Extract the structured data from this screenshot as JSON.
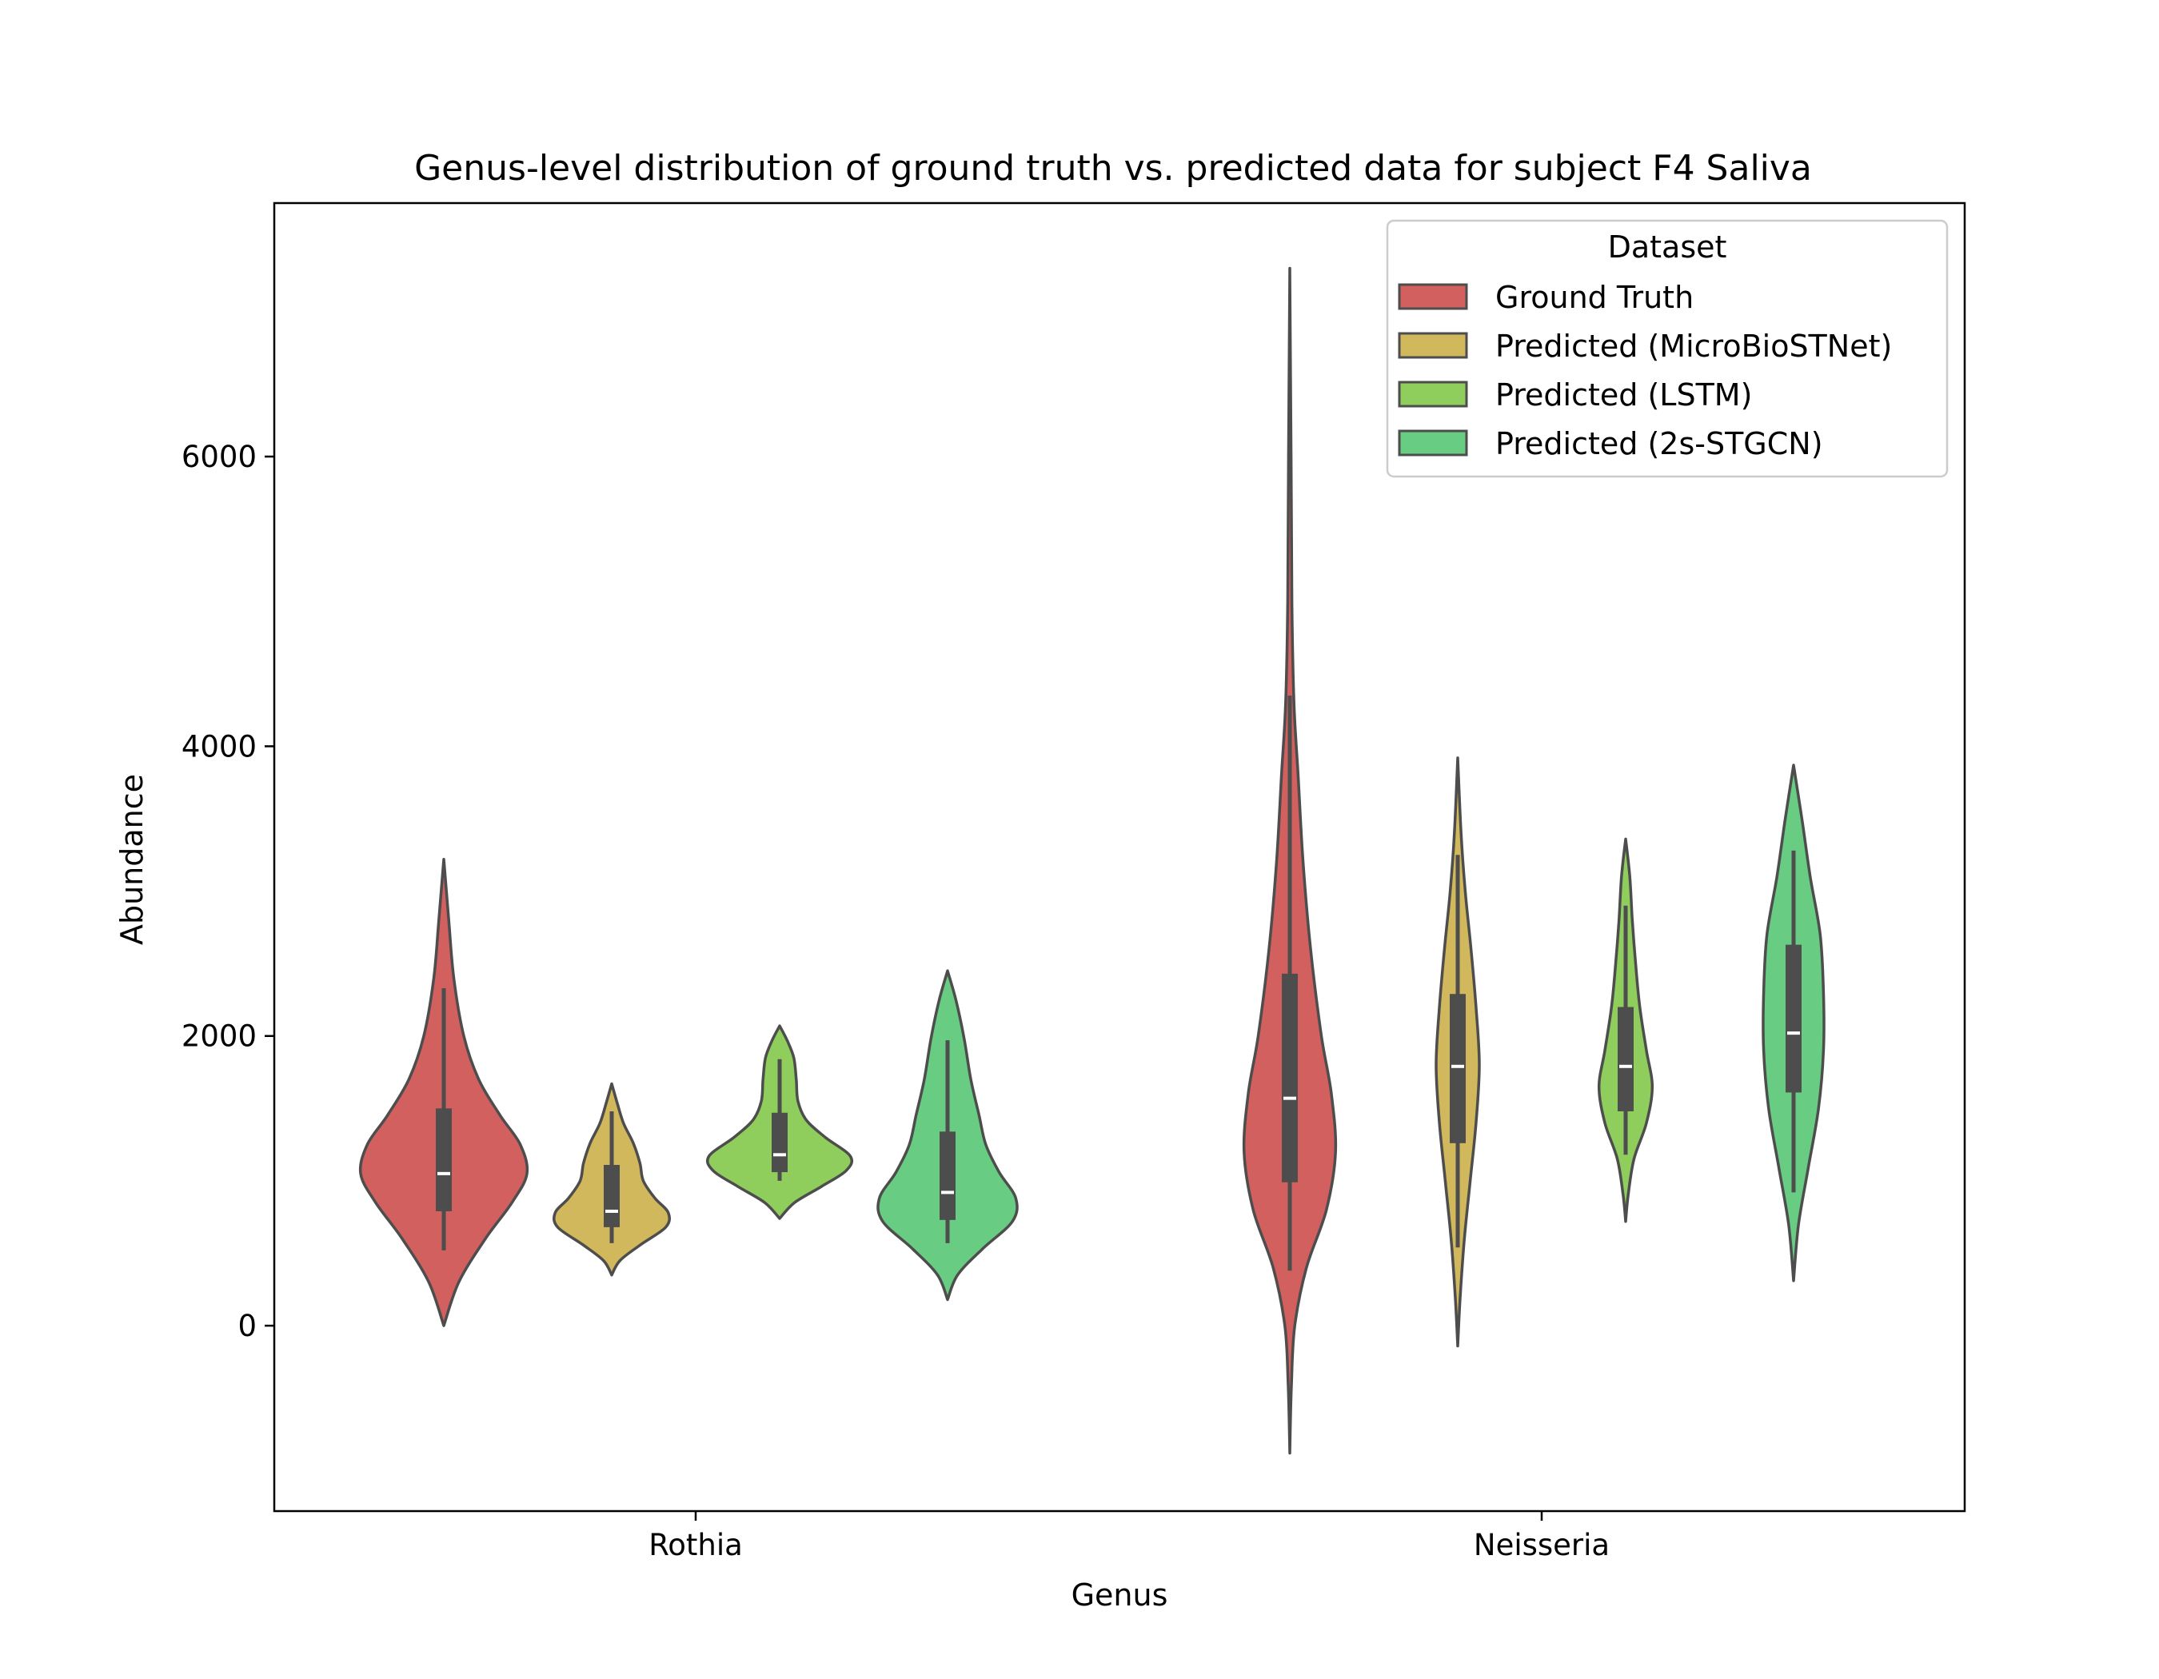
{
  "chart_data": {
    "type": "violin",
    "title": "Genus-level distribution of ground truth vs. predicted data for subject F4 Saliva",
    "xlabel": "Genus",
    "ylabel": "Abundance",
    "ylim": [
      -1280,
      7750
    ],
    "yticks": [
      0,
      2000,
      4000,
      6000
    ],
    "categories": [
      "Rothia",
      "Neisseria"
    ],
    "legend": {
      "title": "Dataset",
      "position": "top-right"
    },
    "series": [
      {
        "name": "Ground Truth",
        "color": "#d1605e",
        "stats": [
          {
            "min": 0,
            "max": 3220,
            "whisker_low": 520,
            "q1": 790,
            "median": 1050,
            "q3": 1500,
            "whisker_high": 2330,
            "density": [
              [
                0,
                0.0
              ],
              [
                300,
                0.18
              ],
              [
                600,
                0.5
              ],
              [
                850,
                0.82
              ],
              [
                1050,
                1.0
              ],
              [
                1250,
                0.92
              ],
              [
                1450,
                0.68
              ],
              [
                1700,
                0.42
              ],
              [
                2000,
                0.24
              ],
              [
                2400,
                0.12
              ],
              [
                2800,
                0.06
              ],
              [
                3220,
                0.0
              ]
            ]
          },
          {
            "min": -880,
            "max": 7300,
            "whisker_low": 380,
            "q1": 990,
            "median": 1570,
            "q3": 2430,
            "whisker_high": 4350,
            "density": [
              [
                -880,
                0.0
              ],
              [
                -400,
                0.02
              ],
              [
                0,
                0.06
              ],
              [
                400,
                0.2
              ],
              [
                800,
                0.44
              ],
              [
                1200,
                0.55
              ],
              [
                1600,
                0.5
              ],
              [
                2000,
                0.38
              ],
              [
                2600,
                0.25
              ],
              [
                3200,
                0.16
              ],
              [
                3800,
                0.1
              ],
              [
                4300,
                0.05
              ],
              [
                5000,
                0.025
              ],
              [
                6000,
                0.015
              ],
              [
                7300,
                0.0
              ]
            ]
          }
        ]
      },
      {
        "name": "Predicted (MicroBioSTNet)",
        "color": "#d1b85c",
        "stats": [
          {
            "min": 350,
            "max": 1670,
            "whisker_low": 570,
            "q1": 680,
            "median": 790,
            "q3": 1110,
            "whisker_high": 1480,
            "density": [
              [
                350,
                0.0
              ],
              [
                450,
                0.1
              ],
              [
                560,
                0.35
              ],
              [
                680,
                0.65
              ],
              [
                780,
                0.68
              ],
              [
                880,
                0.52
              ],
              [
                1000,
                0.38
              ],
              [
                1120,
                0.34
              ],
              [
                1260,
                0.26
              ],
              [
                1400,
                0.14
              ],
              [
                1550,
                0.06
              ],
              [
                1670,
                0.0
              ]
            ]
          },
          {
            "min": -140,
            "max": 3920,
            "whisker_low": 540,
            "q1": 1260,
            "median": 1790,
            "q3": 2290,
            "whisker_high": 3250,
            "density": [
              [
                -140,
                0.0
              ],
              [
                200,
                0.03
              ],
              [
                600,
                0.08
              ],
              [
                1000,
                0.15
              ],
              [
                1400,
                0.22
              ],
              [
                1800,
                0.26
              ],
              [
                2200,
                0.22
              ],
              [
                2600,
                0.16
              ],
              [
                3000,
                0.09
              ],
              [
                3400,
                0.04
              ],
              [
                3920,
                0.0
              ]
            ]
          }
        ]
      },
      {
        "name": "Predicted (LSTM)",
        "color": "#8fcd5c",
        "stats": [
          {
            "min": 740,
            "max": 2070,
            "whisker_low": 1000,
            "q1": 1060,
            "median": 1180,
            "q3": 1470,
            "whisker_high": 1840,
            "density": [
              [
                740,
                0.0
              ],
              [
                850,
                0.18
              ],
              [
                960,
                0.5
              ],
              [
                1070,
                0.8
              ],
              [
                1170,
                0.85
              ],
              [
                1300,
                0.55
              ],
              [
                1420,
                0.32
              ],
              [
                1550,
                0.22
              ],
              [
                1700,
                0.2
              ],
              [
                1850,
                0.17
              ],
              [
                1970,
                0.09
              ],
              [
                2070,
                0.0
              ]
            ]
          },
          {
            "min": 720,
            "max": 3360,
            "whisker_low": 1180,
            "q1": 1480,
            "median": 1790,
            "q3": 2200,
            "whisker_high": 2900,
            "density": [
              [
                720,
                0.0
              ],
              [
                900,
                0.03
              ],
              [
                1150,
                0.1
              ],
              [
                1400,
                0.25
              ],
              [
                1650,
                0.32
              ],
              [
                1900,
                0.25
              ],
              [
                2200,
                0.17
              ],
              [
                2500,
                0.12
              ],
              [
                2800,
                0.08
              ],
              [
                3100,
                0.05
              ],
              [
                3360,
                0.0
              ]
            ]
          }
        ]
      },
      {
        "name": "Predicted (2s-STGCN)",
        "color": "#68cc83",
        "stats": [
          {
            "min": 180,
            "max": 2450,
            "whisker_low": 570,
            "q1": 730,
            "median": 920,
            "q3": 1340,
            "whisker_high": 1970,
            "density": [
              [
                180,
                0.0
              ],
              [
                350,
                0.12
              ],
              [
                530,
                0.42
              ],
              [
                720,
                0.78
              ],
              [
                880,
                0.82
              ],
              [
                1060,
                0.62
              ],
              [
                1250,
                0.46
              ],
              [
                1450,
                0.38
              ],
              [
                1700,
                0.28
              ],
              [
                1980,
                0.2
              ],
              [
                2250,
                0.1
              ],
              [
                2450,
                0.0
              ]
            ]
          },
          {
            "min": 310,
            "max": 3870,
            "whisker_low": 920,
            "q1": 1610,
            "median": 2020,
            "q3": 2630,
            "whisker_high": 3280,
            "density": [
              [
                310,
                0.0
              ],
              [
                700,
                0.06
              ],
              [
                1100,
                0.18
              ],
              [
                1500,
                0.3
              ],
              [
                1900,
                0.36
              ],
              [
                2300,
                0.36
              ],
              [
                2700,
                0.32
              ],
              [
                3100,
                0.2
              ],
              [
                3500,
                0.1
              ],
              [
                3870,
                0.0
              ]
            ]
          }
        ]
      }
    ]
  }
}
